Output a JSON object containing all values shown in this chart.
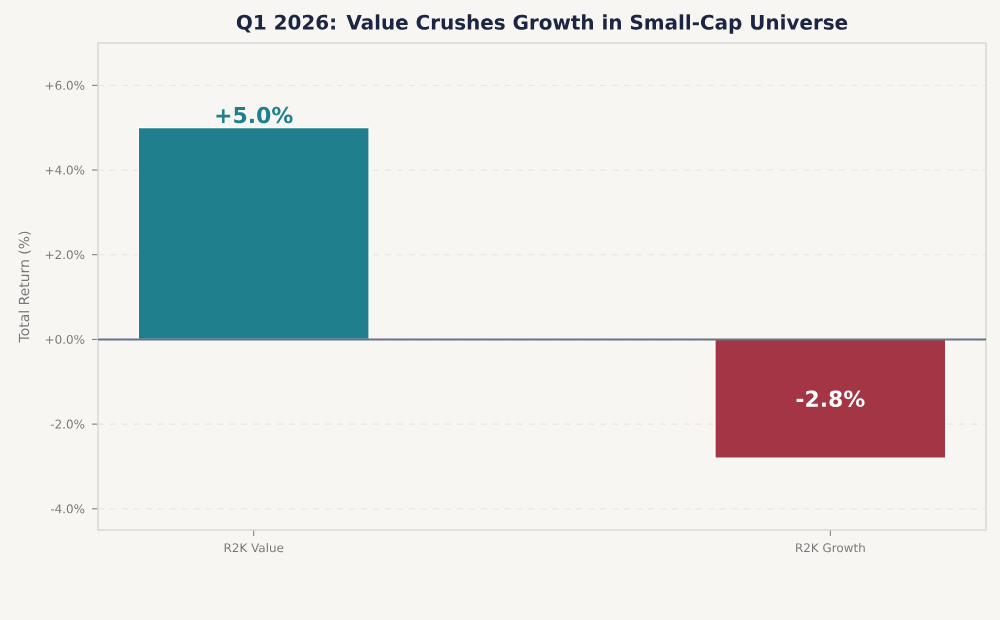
{
  "chart_data": {
    "type": "bar",
    "title": "Q1 2026: Value Crushes Growth in Small-Cap Universe",
    "ylabel": "Total Return (%)",
    "categories": [
      "R2K Value",
      "R2K Growth"
    ],
    "values": [
      5.0,
      -2.8
    ],
    "colors": [
      "#1f7f8c",
      "#a33545"
    ],
    "value_labels": [
      "+5.0%",
      "-2.8%"
    ],
    "ylim": [
      -4.5,
      7
    ],
    "yticks": [
      {
        "value": -4,
        "label": "-4.0%"
      },
      {
        "value": -2,
        "label": "-2.0%"
      },
      {
        "value": 0,
        "label": "+0.0%"
      },
      {
        "value": 2,
        "label": "+2.0%"
      },
      {
        "value": 4,
        "label": "+4.0%"
      },
      {
        "value": 6,
        "label": "+6.0%"
      }
    ],
    "ref_lines": [
      {
        "axis": "y",
        "value": 0,
        "color": "#6b7385"
      }
    ],
    "grid": "y"
  }
}
